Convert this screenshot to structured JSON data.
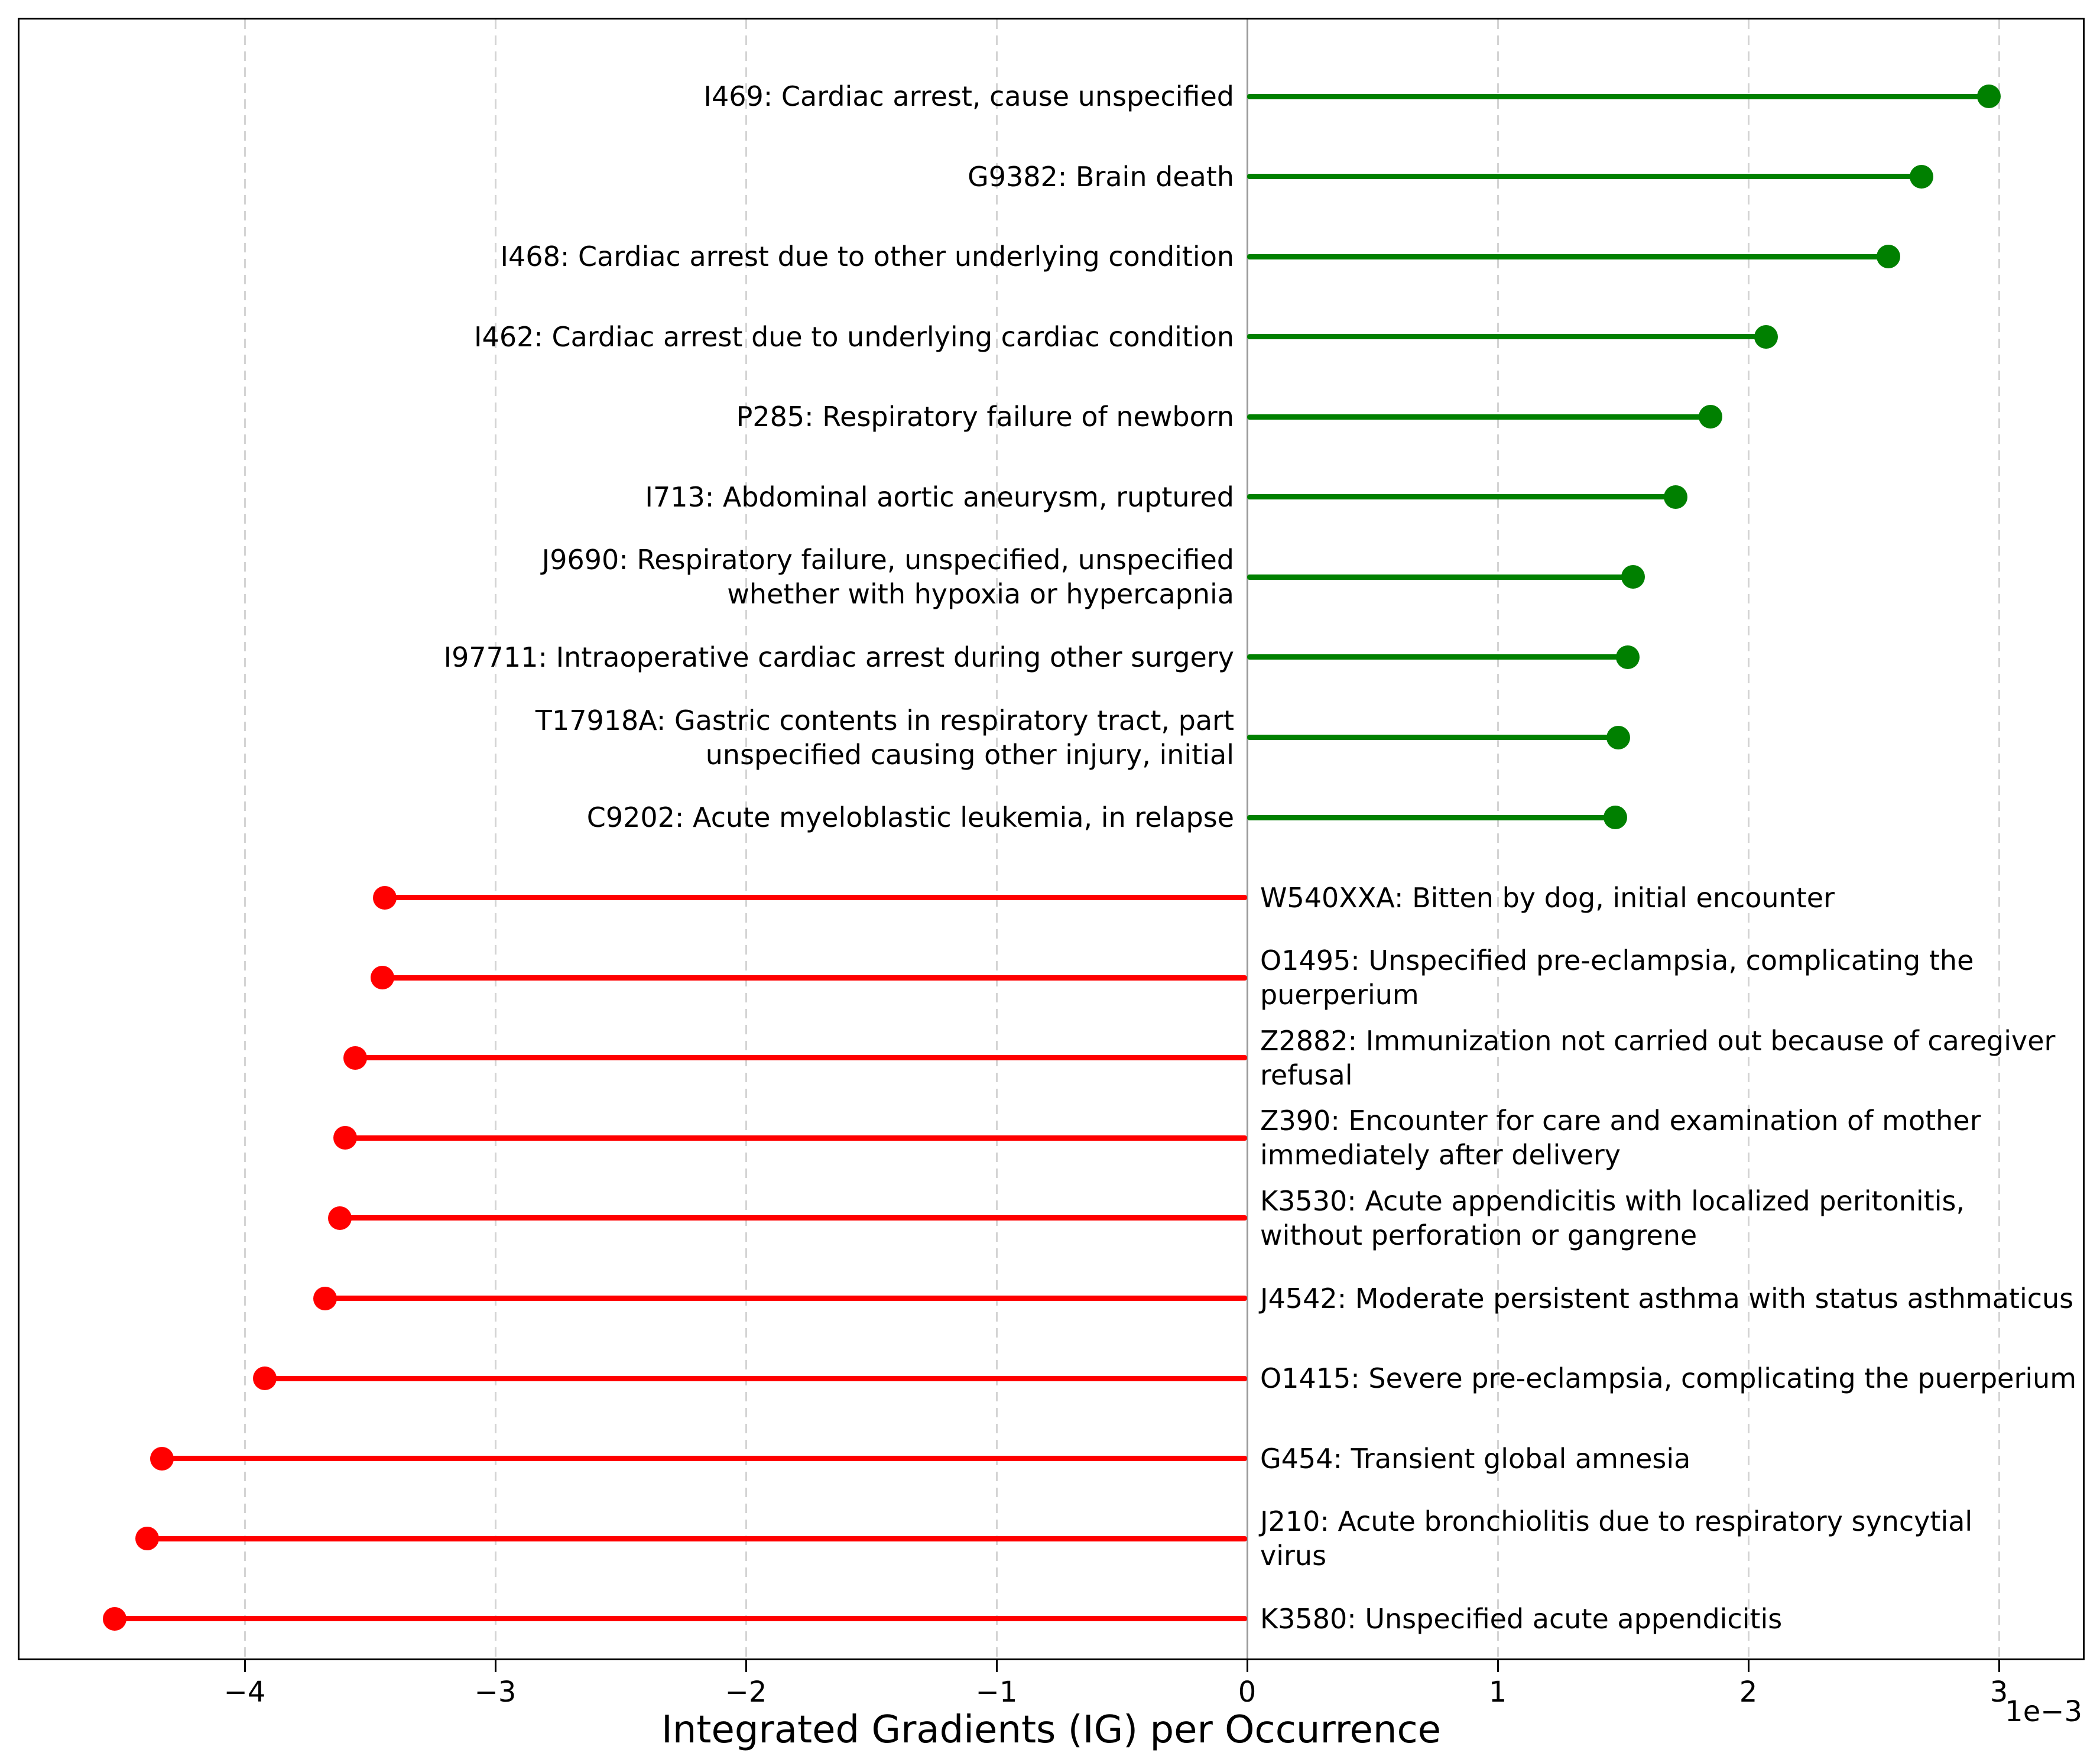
{
  "chart_data": {
    "type": "bar",
    "variant": "horizontal-lollipop",
    "title": "",
    "xlabel": "Integrated Gradients (IG) per Occurrence",
    "axis_offset_label": "1e−3",
    "value_scale": 0.001,
    "xlim": [
      -4.9,
      3.34
    ],
    "x_ticks": [
      -4,
      -3,
      -2,
      -1,
      0,
      1,
      2,
      3
    ],
    "x_tick_labels": [
      "−4",
      "−3",
      "−2",
      "−1",
      "0",
      "1",
      "2",
      "3"
    ],
    "grid": "vertical-dashed",
    "legend": "none",
    "colors": {
      "positive": "#008000",
      "negative": "#ff0000",
      "zero_line": "#9b9b9b",
      "gridline": "#d4d4d4",
      "border": "#000000",
      "text": "#000000",
      "background": "#ffffff"
    },
    "items": [
      {
        "code": "I469",
        "value": 2.96,
        "label_lines": [
          "I469: Cardiac arrest, cause unspecified"
        ]
      },
      {
        "code": "G9382",
        "value": 2.69,
        "label_lines": [
          "G9382: Brain death"
        ]
      },
      {
        "code": "I468",
        "value": 2.56,
        "label_lines": [
          "I468: Cardiac arrest due to other underlying condition"
        ]
      },
      {
        "code": "I462",
        "value": 2.07,
        "label_lines": [
          "I462: Cardiac arrest due to underlying cardiac condition"
        ]
      },
      {
        "code": "P285",
        "value": 1.85,
        "label_lines": [
          "P285: Respiratory failure of newborn"
        ]
      },
      {
        "code": "I713",
        "value": 1.71,
        "label_lines": [
          "I713: Abdominal aortic aneurysm, ruptured"
        ]
      },
      {
        "code": "J9690",
        "value": 1.54,
        "label_lines": [
          "J9690: Respiratory failure, unspecified, unspecified",
          "whether with hypoxia or hypercapnia"
        ]
      },
      {
        "code": "I97711",
        "value": 1.52,
        "label_lines": [
          "I97711: Intraoperative cardiac arrest during other surgery"
        ]
      },
      {
        "code": "T17918A",
        "value": 1.48,
        "label_lines": [
          "T17918A: Gastric contents in respiratory tract, part",
          "unspecified causing other injury, initial"
        ]
      },
      {
        "code": "C9202",
        "value": 1.47,
        "label_lines": [
          "C9202: Acute myeloblastic leukemia, in relapse"
        ]
      },
      {
        "code": "W540XXA",
        "value": -3.44,
        "label_lines": [
          "W540XXA: Bitten by dog, initial encounter"
        ]
      },
      {
        "code": "O1495",
        "value": -3.45,
        "label_lines": [
          "O1495: Unspecified pre-eclampsia, complicating the",
          "puerperium"
        ]
      },
      {
        "code": "Z2882",
        "value": -3.56,
        "label_lines": [
          "Z2882: Immunization not carried out because of caregiver",
          "refusal"
        ]
      },
      {
        "code": "Z390",
        "value": -3.6,
        "label_lines": [
          "Z390: Encounter for care and examination of mother",
          "immediately after delivery"
        ]
      },
      {
        "code": "K3530",
        "value": -3.62,
        "label_lines": [
          "K3530: Acute appendicitis with localized peritonitis,",
          "without perforation or gangrene"
        ]
      },
      {
        "code": "J4542",
        "value": -3.68,
        "label_lines": [
          "J4542: Moderate persistent asthma with status asthmaticus"
        ]
      },
      {
        "code": "O1415",
        "value": -3.92,
        "label_lines": [
          "O1415: Severe pre-eclampsia, complicating the puerperium"
        ]
      },
      {
        "code": "G454",
        "value": -4.33,
        "label_lines": [
          "G454: Transient global amnesia"
        ]
      },
      {
        "code": "J210",
        "value": -4.39,
        "label_lines": [
          "J210: Acute bronchiolitis due to respiratory syncytial",
          "virus"
        ]
      },
      {
        "code": "K3580",
        "value": -4.52,
        "label_lines": [
          "K3580: Unspecified acute appendicitis"
        ]
      }
    ]
  }
}
